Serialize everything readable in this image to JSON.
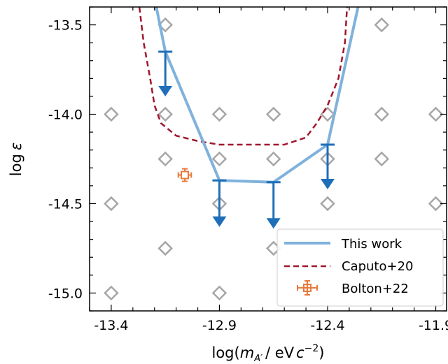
{
  "chart_data": {
    "type": "scatter",
    "xlabel_main": "log(",
    "xlabel_var": "m",
    "xlabel_sub": "A′",
    "xlabel_unit": "/ eV",
    "xlabel_unit2": "c",
    "xlabel_exp": "−2",
    "xlabel_close": ")",
    "ylabel_main": "log",
    "ylabel_var": "ε",
    "xlim": [
      -13.5,
      -11.85
    ],
    "ylim": [
      -15.1,
      -13.4
    ],
    "x_ticks": [
      -13.4,
      -12.9,
      -12.4,
      -11.9
    ],
    "x_tick_labels": [
      "-13.4",
      "-12.9",
      "-12.4",
      "-11.9"
    ],
    "y_ticks": [
      -13.5,
      -14.0,
      -14.5,
      -15.0
    ],
    "y_tick_labels": [
      "-13.5",
      "-14.0",
      "-14.5",
      "-15.0"
    ],
    "grid": false,
    "legend_position": "lower-right",
    "colors": {
      "this_work": "#7fb2dc",
      "arrows": "#1f6fb8",
      "caputo": "#a0172c",
      "bolton": "#e8793a",
      "diamonds": "#a6a6a6"
    },
    "grid_points": [
      [
        -13.15,
        -13.5
      ],
      [
        -12.15,
        -13.5
      ],
      [
        -13.4,
        -14.0
      ],
      [
        -13.15,
        -14.0
      ],
      [
        -12.9,
        -14.0
      ],
      [
        -12.65,
        -14.0
      ],
      [
        -12.4,
        -14.0
      ],
      [
        -12.15,
        -14.0
      ],
      [
        -11.9,
        -14.0
      ],
      [
        -13.15,
        -14.25
      ],
      [
        -12.9,
        -14.25
      ],
      [
        -12.65,
        -14.25
      ],
      [
        -12.4,
        -14.25
      ],
      [
        -12.15,
        -14.25
      ],
      [
        -13.4,
        -14.5
      ],
      [
        -12.9,
        -14.5
      ],
      [
        -12.4,
        -14.5
      ],
      [
        -11.9,
        -14.5
      ],
      [
        -13.15,
        -14.75
      ],
      [
        -12.65,
        -14.75
      ],
      [
        -13.4,
        -15.0
      ],
      [
        -12.9,
        -15.0
      ]
    ],
    "series": [
      {
        "name": "This work",
        "style": "solid",
        "x": [
          -13.2,
          -13.15,
          -12.9,
          -12.65,
          -12.4,
          -12.25
        ],
        "y": [
          -13.35,
          -13.65,
          -14.37,
          -14.38,
          -14.17,
          -13.35
        ]
      },
      {
        "name": "Caputo+20",
        "style": "dashed",
        "x": [
          -13.27,
          -13.25,
          -13.22,
          -13.2,
          -13.17,
          -13.1,
          -13.0,
          -12.9,
          -12.8,
          -12.7,
          -12.6,
          -12.5,
          -12.45,
          -12.4,
          -12.35,
          -12.32,
          -12.31
        ],
        "y": [
          -13.4,
          -13.6,
          -13.8,
          -13.95,
          -14.05,
          -14.12,
          -14.15,
          -14.17,
          -14.17,
          -14.17,
          -14.17,
          -14.13,
          -14.05,
          -13.95,
          -13.8,
          -13.6,
          -13.4
        ]
      },
      {
        "name": "Bolton+22",
        "style": "marker",
        "x": [
          -13.06
        ],
        "y": [
          -14.34
        ],
        "xerr": 0.03,
        "yerr": 0.035
      }
    ],
    "upper_limits": [
      {
        "x": -13.15,
        "y": -13.65,
        "to": -13.9
      },
      {
        "x": -12.9,
        "y": -14.37,
        "to": -14.63
      },
      {
        "x": -12.65,
        "y": -14.38,
        "to": -14.64
      },
      {
        "x": -12.4,
        "y": -14.17,
        "to": -14.42
      }
    ]
  }
}
